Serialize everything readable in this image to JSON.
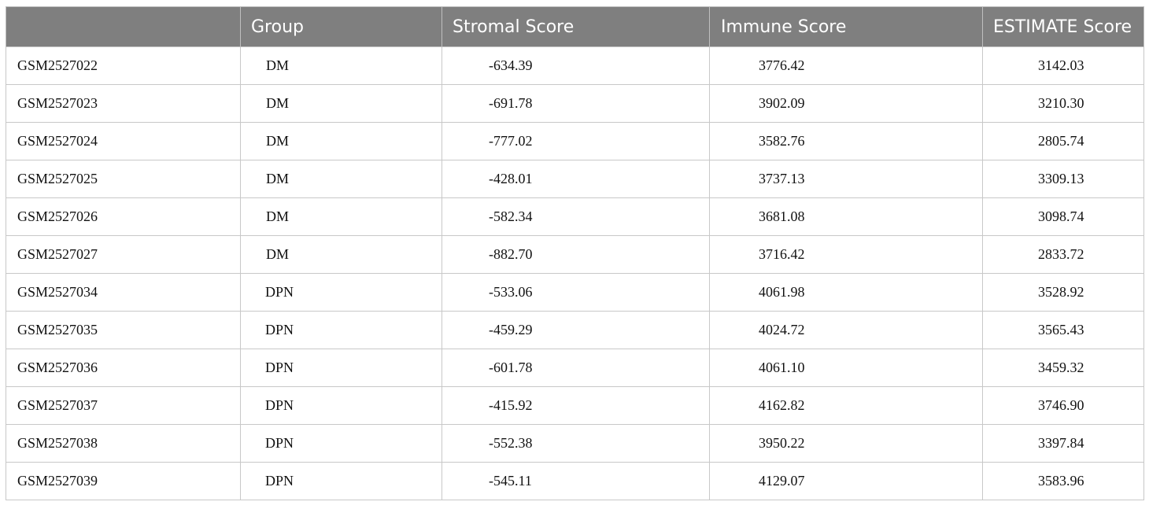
{
  "table": {
    "headers": [
      "",
      "Group",
      "Stromal Score",
      "Immune Score",
      "ESTIMATE Score"
    ],
    "rows": [
      {
        "sample": "GSM2527022",
        "group": "DM",
        "stromal": "-634.39",
        "immune": "3776.42",
        "estimate": "3142.03"
      },
      {
        "sample": "GSM2527023",
        "group": "DM",
        "stromal": "-691.78",
        "immune": "3902.09",
        "estimate": "3210.30"
      },
      {
        "sample": "GSM2527024",
        "group": "DM",
        "stromal": "-777.02",
        "immune": "3582.76",
        "estimate": "2805.74"
      },
      {
        "sample": "GSM2527025",
        "group": "DM",
        "stromal": "-428.01",
        "immune": "3737.13",
        "estimate": "3309.13"
      },
      {
        "sample": "GSM2527026",
        "group": "DM",
        "stromal": "-582.34",
        "immune": "3681.08",
        "estimate": "3098.74"
      },
      {
        "sample": "GSM2527027",
        "group": "DM",
        "stromal": "-882.70",
        "immune": "3716.42",
        "estimate": "2833.72"
      },
      {
        "sample": "GSM2527034",
        "group": "DPN",
        "stromal": "-533.06",
        "immune": "4061.98",
        "estimate": "3528.92"
      },
      {
        "sample": "GSM2527035",
        "group": "DPN",
        "stromal": "-459.29",
        "immune": "4024.72",
        "estimate": "3565.43"
      },
      {
        "sample": "GSM2527036",
        "group": "DPN",
        "stromal": "-601.78",
        "immune": "4061.10",
        "estimate": "3459.32"
      },
      {
        "sample": "GSM2527037",
        "group": "DPN",
        "stromal": "-415.92",
        "immune": "4162.82",
        "estimate": "3746.90"
      },
      {
        "sample": "GSM2527038",
        "group": "DPN",
        "stromal": "-552.38",
        "immune": "3950.22",
        "estimate": "3397.84"
      },
      {
        "sample": "GSM2527039",
        "group": "DPN",
        "stromal": "-545.11",
        "immune": "4129.07",
        "estimate": "3583.96"
      }
    ]
  },
  "colors": {
    "header_bg": "#7f7f7f",
    "header_text": "#ffffff",
    "border": "#c8c8c8"
  }
}
